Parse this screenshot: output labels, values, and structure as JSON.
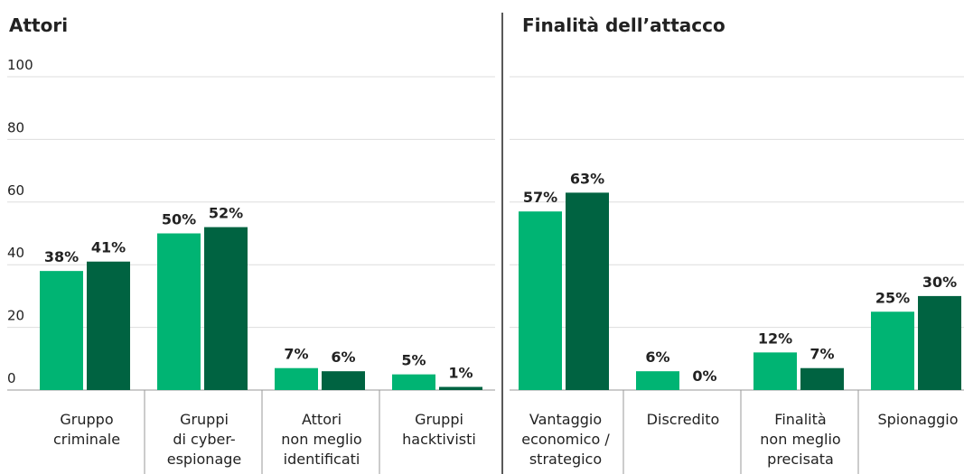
{
  "chart_data": [
    {
      "type": "bar",
      "title": "Attori",
      "categories": [
        "Gruppo\ncriminale",
        "Gruppi\ndi cyber-\nespionage",
        "Attori\nnon meglio\nidentificati",
        "Gruppi\nhacktivisti"
      ],
      "series": [
        {
          "color": "#00b473",
          "values": [
            38,
            50,
            7,
            5
          ],
          "value_labels": [
            "38%",
            "50%",
            "7%",
            "5%"
          ]
        },
        {
          "color": "#006341",
          "values": [
            41,
            52,
            6,
            1
          ],
          "value_labels": [
            "41%",
            "52%",
            "6%",
            "1%"
          ]
        }
      ],
      "ylim": [
        0,
        100
      ],
      "yticks": [
        0,
        20,
        40,
        60,
        80,
        100
      ],
      "grid": true
    },
    {
      "type": "bar",
      "title": "Finalità dell’attacco",
      "categories": [
        "Vantaggio\neconomico /\nstrategico",
        "Discredito",
        "Finalità\nnon meglio\nprecisata",
        "Spionaggio"
      ],
      "series": [
        {
          "color": "#00b473",
          "values": [
            57,
            6,
            12,
            25
          ],
          "value_labels": [
            "57%",
            "6%",
            "12%",
            "25%"
          ]
        },
        {
          "color": "#006341",
          "values": [
            63,
            0,
            7,
            30
          ],
          "value_labels": [
            "63%",
            "0%",
            "7%",
            "30%"
          ]
        }
      ],
      "ylim": [
        0,
        100
      ]
    }
  ]
}
